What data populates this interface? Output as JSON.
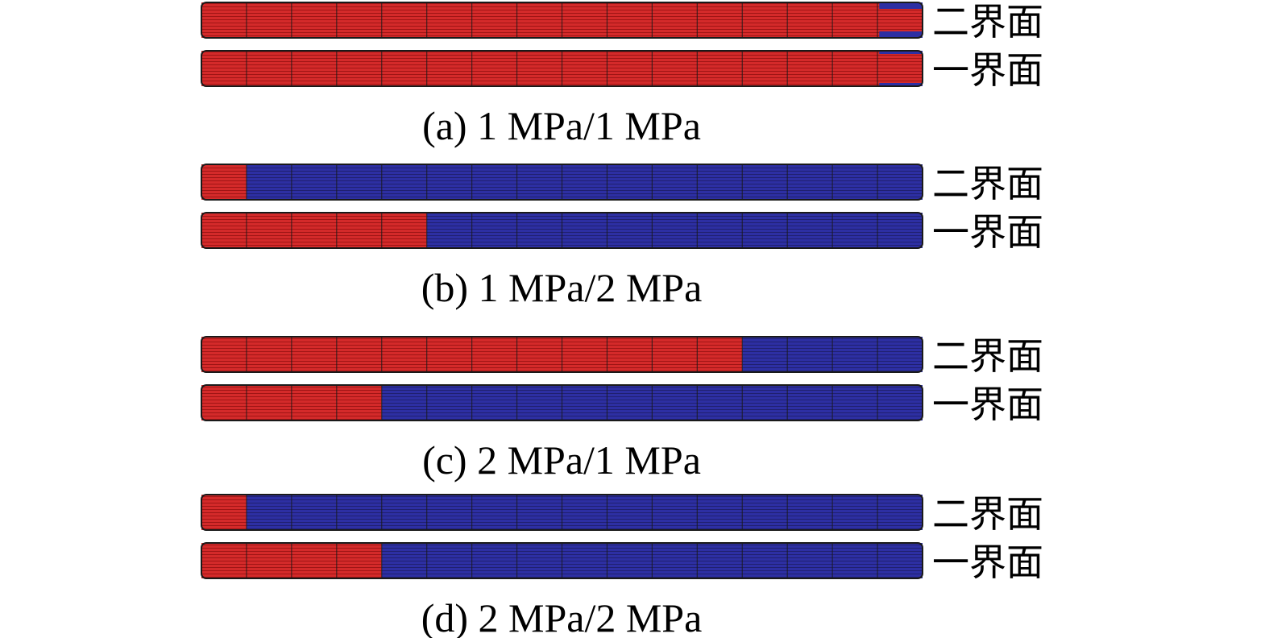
{
  "figure": {
    "colors": {
      "bonded": "#d42a2a",
      "debonded": "#2d2fa3",
      "edge": "#1a1a1a",
      "stripe_bonded": "#a01515",
      "stripe_debonded": "#202070"
    },
    "panels": [
      {
        "caption": "(a) 1 MPa/1 MPa",
        "rows": [
          {
            "label": "二界面",
            "debond_fraction_from_right": 0.06,
            "debond_thin_band": true
          },
          {
            "label": "一界面",
            "debond_fraction_from_right": 0.06,
            "debond_thin_band": true,
            "debond_very_thin": true
          }
        ]
      },
      {
        "caption": "(b) 1 MPa/2 MPa",
        "rows": [
          {
            "label": "二界面",
            "bonded_fraction_from_left": 0.0625
          },
          {
            "label": "一界面",
            "bonded_fraction_from_left": 0.3125
          }
        ]
      },
      {
        "caption": "(c) 2 MPa/1 MPa",
        "rows": [
          {
            "label": "二界面",
            "bonded_fraction_from_left": 0.75
          },
          {
            "label": "一界面",
            "bonded_fraction_from_left": 0.25
          }
        ]
      },
      {
        "caption": "(d) 2 MPa/2 MPa",
        "rows": [
          {
            "label": "二界面",
            "bonded_fraction_from_left": 0.0625
          },
          {
            "label": "一界面",
            "bonded_fraction_from_left": 0.25
          }
        ]
      }
    ]
  }
}
